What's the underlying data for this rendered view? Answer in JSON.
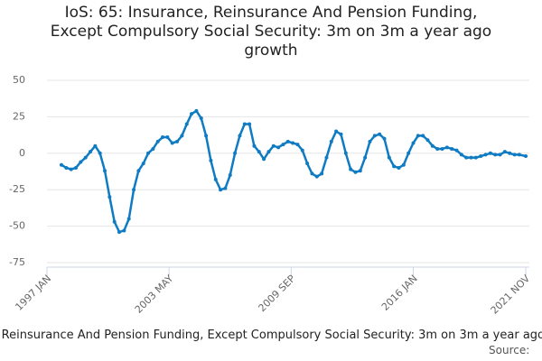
{
  "chart_data": {
    "type": "line",
    "title": "IoS: 65: Insurance, Reinsurance And Pension Funding, Except Compulsory Social Security: 3m on 3m a year ago growth",
    "source": "Source:",
    "x": [
      "1997 OCT",
      "1998 JAN",
      "1998 APR",
      "1998 JUL",
      "1998 OCT",
      "1999 JAN",
      "1999 APR",
      "1999 JUL",
      "1999 OCT",
      "2000 JAN",
      "2000 APR",
      "2000 JUL",
      "2000 OCT",
      "2001 JAN",
      "2001 APR",
      "2001 JUL",
      "2001 OCT",
      "2002 JAN",
      "2002 APR",
      "2002 JUL",
      "2002 OCT",
      "2003 JAN",
      "2003 APR",
      "2003 JUL",
      "2003 OCT",
      "2004 JAN",
      "2004 APR",
      "2004 JUL",
      "2004 OCT",
      "2005 JAN",
      "2005 APR",
      "2005 JUL",
      "2005 OCT",
      "2006 JAN",
      "2006 APR",
      "2006 JUL",
      "2006 OCT",
      "2007 JAN",
      "2007 APR",
      "2007 JUL",
      "2007 OCT",
      "2008 JAN",
      "2008 APR",
      "2008 JUL",
      "2008 OCT",
      "2009 JAN",
      "2009 APR",
      "2009 JUL",
      "2009 OCT",
      "2010 JAN",
      "2010 APR",
      "2010 JUL",
      "2010 OCT",
      "2011 JAN",
      "2011 APR",
      "2011 JUL",
      "2011 OCT",
      "2012 JAN",
      "2012 APR",
      "2012 JUL",
      "2012 OCT",
      "2013 JAN",
      "2013 APR",
      "2013 JUL",
      "2013 OCT",
      "2014 JAN",
      "2014 APR",
      "2014 JUL",
      "2014 OCT",
      "2015 JAN",
      "2015 APR",
      "2015 JUL",
      "2015 OCT",
      "2016 JAN",
      "2016 APR",
      "2016 JUL",
      "2016 OCT",
      "2017 JAN",
      "2017 APR",
      "2017 JUL",
      "2017 OCT",
      "2018 JAN",
      "2018 APR",
      "2018 JUL",
      "2018 OCT",
      "2019 JAN",
      "2019 APR",
      "2019 JUL",
      "2019 OCT",
      "2020 JAN",
      "2020 APR",
      "2020 JUL",
      "2020 OCT",
      "2021 JAN",
      "2021 APR",
      "2021 JUL",
      "2021 NOV"
    ],
    "values": [
      -8,
      -10,
      -11,
      -10,
      -6,
      -3,
      1,
      5,
      0,
      -12,
      -30,
      -47,
      -54,
      -53,
      -45,
      -25,
      -12,
      -7,
      0,
      3,
      8,
      11,
      11,
      7,
      8,
      12,
      20,
      27,
      29,
      24,
      12,
      -5,
      -18,
      -25,
      -24,
      -15,
      0,
      12,
      20,
      20,
      5,
      1,
      -4,
      1,
      5,
      4,
      6,
      8,
      7,
      6,
      2,
      -7,
      -14,
      -16,
      -14,
      -3,
      8,
      15,
      13,
      0,
      -11,
      -13,
      -12,
      -3,
      8,
      12,
      13,
      10,
      -3,
      -9,
      -10,
      -8,
      0,
      7,
      12,
      12,
      9,
      5,
      3,
      3,
      4,
      3,
      2,
      -1,
      -3,
      -3,
      -3,
      -2,
      -1,
      0,
      -1,
      -1,
      1,
      0,
      -1,
      -1,
      -2
    ],
    "color": "#0f7bc2",
    "xlim": [
      "1997 JAN",
      "2021 NOV"
    ],
    "xticks": [
      "1997 JAN",
      "2003 MAY",
      "2009 SEP",
      "2016 JAN",
      "2021 NOV"
    ],
    "ylim": [
      -75,
      50
    ],
    "yticks": [
      -75,
      -50,
      -25,
      0,
      25,
      50
    ],
    "grid": true
  }
}
